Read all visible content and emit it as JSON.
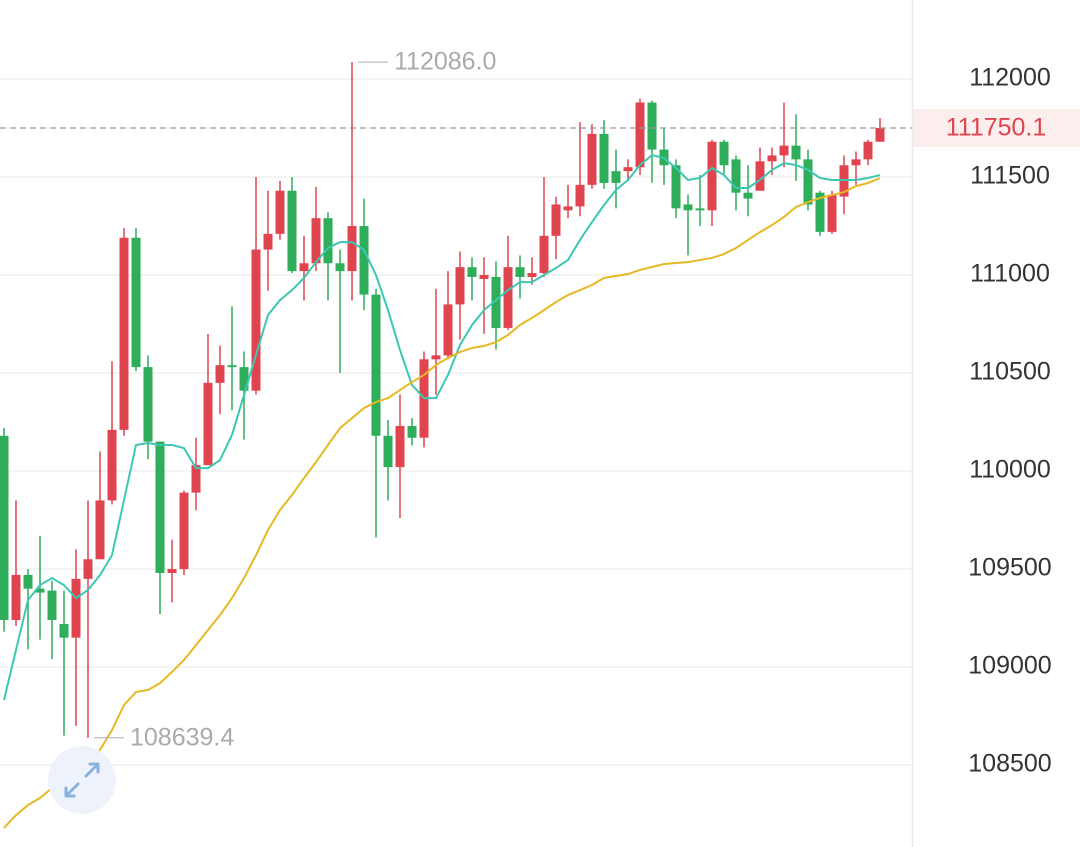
{
  "chart_data": {
    "type": "candlestick",
    "ylim": [
      108082,
      112403
    ],
    "yticks": [
      108500,
      109000,
      109500,
      110000,
      110500,
      111000,
      111500,
      112000
    ],
    "grid": true,
    "up_color": "#e0444f",
    "down_color": "#2ead5a",
    "open": [
      110180,
      109240,
      109470,
      109400,
      109390,
      109220,
      109150,
      109450,
      109550,
      109850,
      110210,
      111190,
      110530,
      110150,
      109480,
      109500,
      109890,
      110030,
      110450,
      110540,
      110530,
      110410,
      111130,
      111210,
      111430,
      111020,
      111060,
      111290,
      111060,
      111020,
      111250,
      110900,
      110180,
      110020,
      110230,
      110170,
      110570,
      110590,
      110850,
      111040,
      110980,
      110990,
      110730,
      111040,
      110990,
      111010,
      111200,
      111330,
      111350,
      111460,
      111720,
      111530,
      111530,
      111550,
      111880,
      111640,
      111560,
      111360,
      111340,
      111330,
      111680,
      111590,
      111420,
      111430,
      111580,
      111610,
      111660,
      111590,
      111420,
      111220,
      111400,
      111560,
      111590,
      111680
    ],
    "high": [
      110220,
      109850,
      109500,
      109670,
      109440,
      109390,
      109600,
      109850,
      110100,
      110560,
      111240,
      111240,
      110590,
      110150,
      109650,
      109900,
      110170,
      110700,
      110640,
      110840,
      110610,
      111500,
      111430,
      111480,
      111500,
      111200,
      111450,
      111320,
      111130,
      112086,
      111390,
      110930,
      110260,
      110390,
      110270,
      110610,
      110930,
      111020,
      111120,
      111090,
      111090,
      111070,
      111200,
      111100,
      111090,
      111500,
      111400,
      111460,
      111780,
      111770,
      111790,
      111640,
      111590,
      111900,
      111890,
      111750,
      111590,
      111410,
      111510,
      111690,
      111690,
      111610,
      111560,
      111650,
      111650,
      111880,
      111820,
      111640,
      111430,
      111430,
      111610,
      111630,
      111690,
      111800
    ],
    "low": [
      109180,
      109210,
      109090,
      109140,
      109040,
      108650,
      108700,
      108639.4,
      109550,
      109830,
      110180,
      110510,
      110060,
      109270,
      109330,
      109470,
      109800,
      110030,
      110290,
      110310,
      110160,
      110390,
      110920,
      111180,
      111010,
      110870,
      111020,
      110870,
      110500,
      110870,
      110820,
      109660,
      109850,
      109760,
      110130,
      110120,
      110390,
      110570,
      110670,
      110870,
      110700,
      110620,
      110720,
      110880,
      110950,
      110990,
      111080,
      111290,
      111300,
      111440,
      111440,
      111340,
      111480,
      111510,
      111470,
      111460,
      111290,
      111100,
      111250,
      111250,
      111510,
      111330,
      111300,
      111430,
      111510,
      111550,
      111480,
      111330,
      111200,
      111210,
      111310,
      111460,
      111560,
      111680
    ],
    "close": [
      109240,
      109470,
      109400,
      109380,
      109240,
      109150,
      109450,
      109550,
      109850,
      110210,
      111190,
      110530,
      110150,
      109480,
      109500,
      109890,
      110030,
      110450,
      110540,
      110530,
      110410,
      111130,
      111210,
      111430,
      111020,
      111060,
      111290,
      111060,
      111020,
      111250,
      110900,
      110180,
      110020,
      110230,
      110170,
      110570,
      110590,
      110850,
      111040,
      110990,
      111000,
      110730,
      111040,
      110990,
      111010,
      111200,
      111360,
      111350,
      111460,
      111720,
      111470,
      111470,
      111550,
      111880,
      111640,
      111560,
      111340,
      111330,
      111330,
      111680,
      111560,
      111420,
      111390,
      111580,
      111610,
      111660,
      111590,
      111360,
      111220,
      111410,
      111560,
      111590,
      111680,
      111750.1
    ],
    "ma_lines": [
      {
        "color": "#3cc7b2",
        "values": [
          108832,
          109087,
          109342,
          109418,
          109454,
          109418,
          109352,
          109393,
          109469,
          109571,
          109852,
          110133,
          110143,
          110133,
          110133,
          110117,
          110015,
          110015,
          110056,
          110184,
          110388,
          110592,
          110796,
          110872,
          110923,
          110985,
          111066,
          111138,
          111168,
          111168,
          111128,
          111000,
          110821,
          110617,
          110439,
          110372,
          110372,
          110490,
          110643,
          110745,
          110821,
          110872,
          110923,
          110964,
          110964,
          111000,
          111036,
          111077,
          111179,
          111270,
          111357,
          111434,
          111485,
          111561,
          111612,
          111597,
          111546,
          111485,
          111495,
          111546,
          111510,
          111444,
          111444,
          111485,
          111536,
          111571,
          111561,
          111536,
          111495,
          111485,
          111485,
          111485,
          111495,
          111510
        ]
      },
      {
        "color": "#e6b822",
        "values": [
          108179,
          108245,
          108296,
          108332,
          108383,
          108434,
          108475,
          108515,
          108577,
          108679,
          108806,
          108873,
          108883,
          108918,
          108975,
          109036,
          109112,
          109189,
          109265,
          109352,
          109454,
          109571,
          109699,
          109801,
          109878,
          109964,
          110046,
          110133,
          110219,
          110270,
          110321,
          110352,
          110372,
          110413,
          110454,
          110490,
          110541,
          110577,
          110607,
          110628,
          110638,
          110658,
          110694,
          110745,
          110781,
          110821,
          110862,
          110898,
          110923,
          110949,
          110985,
          110995,
          111005,
          111026,
          111041,
          111056,
          111061,
          111066,
          111077,
          111087,
          111107,
          111138,
          111179,
          111219,
          111255,
          111296,
          111347,
          111372,
          111393,
          111408,
          111423,
          111454,
          111469,
          111495
        ]
      }
    ],
    "annotations": [
      {
        "value": 112086,
        "label": "112086.0"
      },
      {
        "value": 108639.4,
        "label": "108639.4"
      }
    ]
  }
}
